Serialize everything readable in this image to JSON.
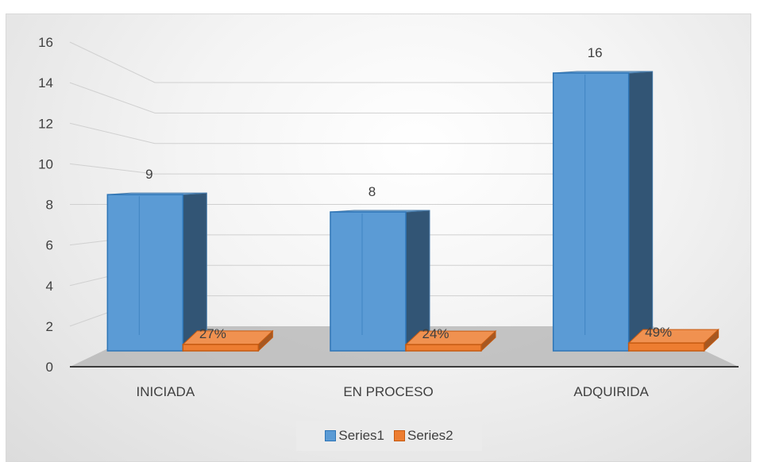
{
  "chart_data": {
    "type": "bar",
    "categories": [
      "INICIADA",
      "EN PROCESO",
      "ADQUIRIDA"
    ],
    "series": [
      {
        "name": "Series1",
        "values": [
          9,
          8,
          16
        ],
        "labels": [
          "9",
          "8",
          "16"
        ],
        "color": "#5b9bd5"
      },
      {
        "name": "Series2",
        "values": [
          0.27,
          0.24,
          0.49
        ],
        "labels": [
          "27%",
          "24%",
          "49%"
        ],
        "color": "#ed7d31"
      }
    ],
    "ylim": [
      0,
      16
    ],
    "yticks": [
      "0",
      "2",
      "4",
      "6",
      "8",
      "10",
      "12",
      "14",
      "16"
    ],
    "grid": true,
    "legend": "bottom",
    "style": "3d-column"
  }
}
